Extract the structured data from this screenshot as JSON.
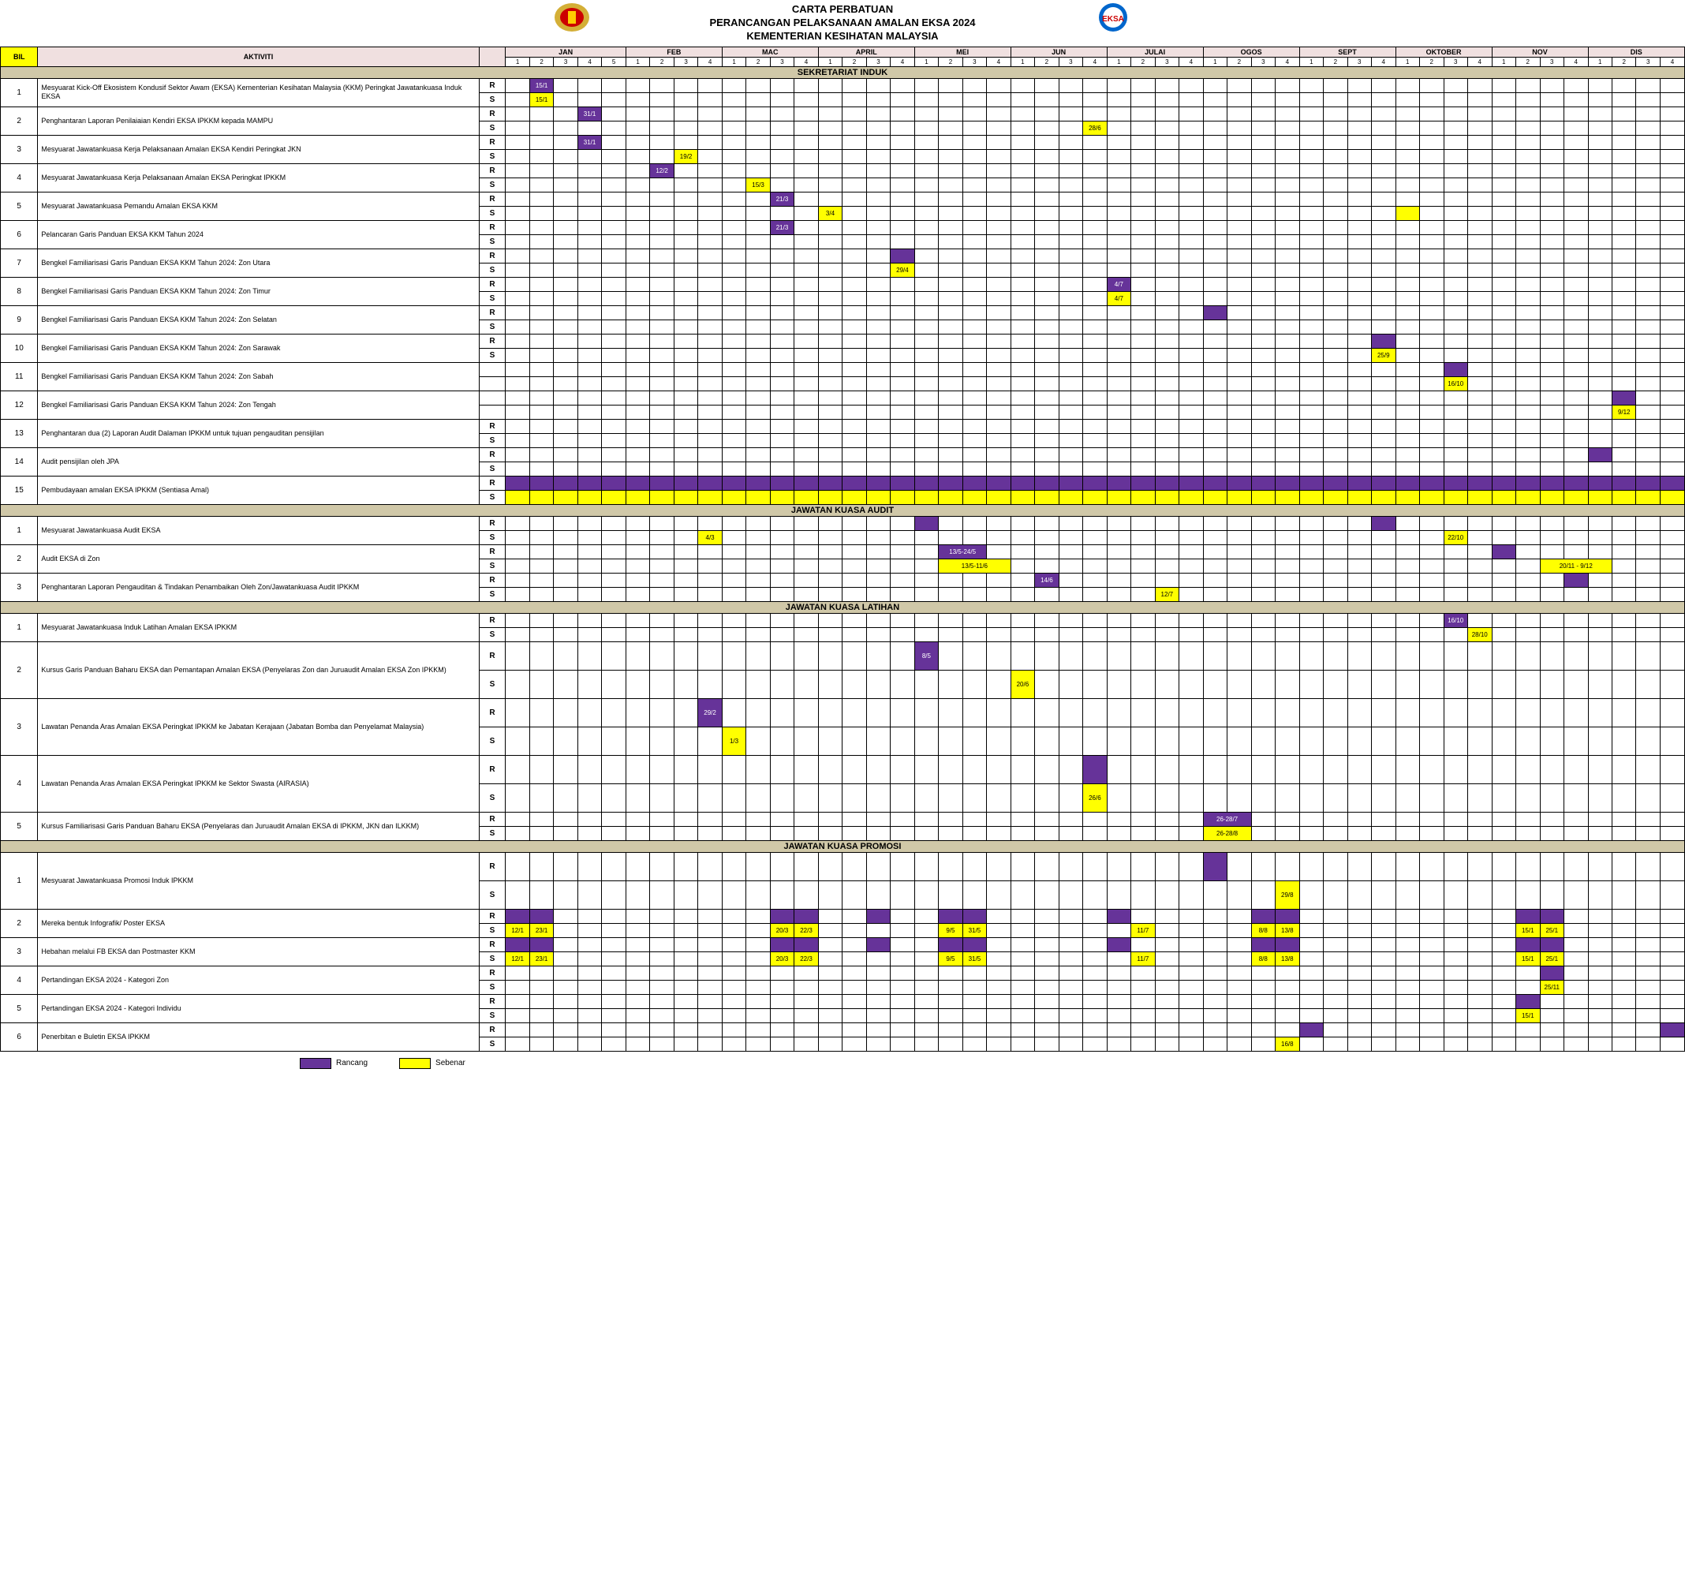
{
  "header": {
    "line1": "CARTA PERBATUAN",
    "line2": "PERANCANGAN PELAKSANAAN AMALAN EKSA 2024",
    "line3": "KEMENTERIAN KESIHATAN MALAYSIA"
  },
  "columns": {
    "bil": "BIL",
    "aktiviti": "AKTIVITI"
  },
  "months": [
    {
      "name": "JAN",
      "weeks": 5
    },
    {
      "name": "FEB",
      "weeks": 4
    },
    {
      "name": "MAC",
      "weeks": 4
    },
    {
      "name": "APRIL",
      "weeks": 4
    },
    {
      "name": "MEI",
      "weeks": 4
    },
    {
      "name": "JUN",
      "weeks": 4
    },
    {
      "name": "JULAI",
      "weeks": 4
    },
    {
      "name": "OGOS",
      "weeks": 4
    },
    {
      "name": "SEPT",
      "weeks": 4
    },
    {
      "name": "OKTOBER",
      "weeks": 4
    },
    {
      "name": "NOV",
      "weeks": 4
    },
    {
      "name": "DIS",
      "weeks": 4
    }
  ],
  "totalWeeks": 49,
  "colors": {
    "purple": "#663399",
    "yellow": "#ffff00",
    "sectionBg": "#d0c8a8",
    "headerBg": "#f0e0e0"
  },
  "legend": {
    "rancang": "Rancang",
    "sebenar": "Sebenar"
  },
  "sections": [
    {
      "title": "SEKRETARIAT INDUK",
      "rows": [
        {
          "bil": 1,
          "akt": "Mesyuarat Kick-Off Ekosistem Kondusif Sektor Awam (EKSA) Kementerian Kesihatan Malaysia (KKM) Peringkat Jawatankuasa Induk EKSA",
          "r": [
            {
              "w": 2,
              "t": "15/1"
            }
          ],
          "s": [
            {
              "w": 2,
              "t": "15/1"
            }
          ]
        },
        {
          "bil": 2,
          "akt": "Penghantaran Laporan Penilaiaian Kendiri EKSA IPKKM kepada MAMPU",
          "r": [
            {
              "w": 4,
              "t": "31/1"
            }
          ],
          "s": [
            {
              "w": 25,
              "t": "28/6"
            }
          ]
        },
        {
          "bil": 3,
          "akt": "Mesyuarat Jawatankuasa Kerja Pelaksanaan Amalan EKSA Kendiri Peringkat JKN",
          "r": [
            {
              "w": 4,
              "t": "31/1"
            }
          ],
          "s": [
            {
              "w": 8,
              "t": "19/2"
            }
          ]
        },
        {
          "bil": 4,
          "akt": "Mesyuarat Jawatankuasa Kerja Pelaksanaan Amalan EKSA Peringkat IPKKM",
          "r": [
            {
              "w": 7,
              "t": "12/2"
            }
          ],
          "s": [
            {
              "w": 11,
              "t": "15/3"
            }
          ]
        },
        {
          "bil": 5,
          "akt": "Mesyuarat Jawatankuasa Pemandu Amalan EKSA KKM",
          "r": [
            {
              "w": 12,
              "t": "21/3"
            }
          ],
          "s": [
            {
              "w": 14,
              "t": "3/4"
            },
            {
              "w": 38,
              "t": ""
            }
          ]
        },
        {
          "bil": 6,
          "akt": "Pelancaran Garis Panduan EKSA KKM Tahun 2024",
          "r": [
            {
              "w": 12,
              "t": "21/3"
            }
          ],
          "s": []
        },
        {
          "bil": 7,
          "akt": "Bengkel Familiarisasi Garis Panduan EKSA KKM Tahun 2024: Zon Utara",
          "r": [
            {
              "w": 17,
              "t": ""
            }
          ],
          "s": [
            {
              "w": 17,
              "t": "29/4"
            }
          ]
        },
        {
          "bil": 8,
          "akt": "Bengkel Familiarisasi Garis Panduan EKSA KKM Tahun 2024: Zon Timur",
          "r": [
            {
              "w": 26,
              "t": "4/7"
            }
          ],
          "s": [
            {
              "w": 26,
              "t": "4/7"
            }
          ]
        },
        {
          "bil": 9,
          "akt": "Bengkel Familiarisasi Garis Panduan EKSA KKM Tahun 2024: Zon Selatan",
          "r": [
            {
              "w": 30,
              "t": ""
            }
          ],
          "s": []
        },
        {
          "bil": 10,
          "akt": "Bengkel Familiarisasi Garis Panduan EKSA KKM Tahun 2024: Zon Sarawak",
          "r": [
            {
              "w": 37,
              "t": ""
            }
          ],
          "s": [
            {
              "w": 37,
              "t": "25/9"
            }
          ]
        },
        {
          "bil": 11,
          "akt": "Bengkel Familiarisasi Garis Panduan EKSA KKM Tahun 2024: Zon Sabah",
          "r": [
            {
              "w": 40,
              "t": ""
            }
          ],
          "s": [
            {
              "w": 40,
              "t": "16/10"
            }
          ],
          "noRS": true
        },
        {
          "bil": 12,
          "akt": "Bengkel Familiarisasi Garis Panduan EKSA KKM Tahun 2024: Zon Tengah",
          "r": [
            {
              "w": 47,
              "t": ""
            }
          ],
          "s": [
            {
              "w": 47,
              "t": "9/12"
            }
          ],
          "noRS": true
        },
        {
          "bil": 13,
          "akt": "Penghantaran dua (2) Laporan Audit Dalaman IPKKM untuk tujuan pengauditan pensijilan",
          "r": [],
          "s": []
        },
        {
          "bil": 14,
          "akt": "Audit pensijilan oleh JPA",
          "r": [
            {
              "w": 46,
              "t": ""
            }
          ],
          "s": []
        },
        {
          "bil": 15,
          "akt": "Pembudayaan amalan EKSA IPKKM (Sentiasa Amal)",
          "r": "full",
          "s": "full"
        }
      ]
    },
    {
      "title": "JAWATAN KUASA  AUDIT",
      "rows": [
        {
          "bil": 1,
          "akt": "Mesyuarat Jawatankuasa Audit EKSA",
          "r": [
            {
              "w": 18,
              "t": ""
            },
            {
              "w": 37,
              "t": ""
            }
          ],
          "s": [
            {
              "w": 9,
              "t": "4/3"
            },
            {
              "w": 40,
              "t": "22/10"
            }
          ]
        },
        {
          "bil": 2,
          "akt": "Audit EKSA di Zon",
          "r": [
            {
              "w": 19,
              "t": "13/5-24/5",
              "span": 2
            },
            {
              "w": 42,
              "t": ""
            }
          ],
          "s": [
            {
              "w": 19,
              "t": "13/5-11/6",
              "span": 3
            },
            {
              "w": 44,
              "t": "20/11 - 9/12",
              "span": 3
            }
          ]
        },
        {
          "bil": 3,
          "akt": "Penghantaran Laporan Pengauditan & Tindakan Penambaikan Oleh Zon/Jawatankuasa  Audit IPKKM",
          "r": [
            {
              "w": 23,
              "t": "14/6"
            },
            {
              "w": 45,
              "t": ""
            }
          ],
          "s": [
            {
              "w": 28,
              "t": "12/7"
            }
          ]
        }
      ]
    },
    {
      "title": "JAWATAN KUASA LATIHAN",
      "rows": [
        {
          "bil": 1,
          "akt": "Mesyuarat Jawatankuasa Induk Latihan Amalan EKSA IPKKM",
          "r": [
            {
              "w": 40,
              "t": "16/10"
            }
          ],
          "s": [
            {
              "w": 41,
              "t": "28/10"
            }
          ]
        },
        {
          "bil": 2,
          "akt": "Kursus Garis Panduan Baharu EKSA dan Pemantapan Amalan EKSA (Penyelaras Zon dan Juruaudit Amalan EKSA Zon IPKKM)",
          "r": [
            {
              "w": 18,
              "t": "8/5"
            }
          ],
          "s": [
            {
              "w": 22,
              "t": "20/6"
            }
          ],
          "tall": true
        },
        {
          "bil": 3,
          "akt": "Lawatan Penanda Aras Amalan EKSA Peringkat IPKKM  ke Jabatan Kerajaan (Jabatan Bomba dan Penyelamat Malaysia)",
          "r": [
            {
              "w": 9,
              "t": "29/2"
            }
          ],
          "s": [
            {
              "w": 10,
              "t": "1/3"
            }
          ],
          "tall": true
        },
        {
          "bil": 4,
          "akt": "Lawatan Penanda Aras Amalan EKSA Peringkat IPKKM ke Sektor Swasta (AIRASIA)",
          "r": [
            {
              "w": 25,
              "t": ""
            }
          ],
          "s": [
            {
              "w": 25,
              "t": "26/6"
            }
          ],
          "tall": true
        },
        {
          "bil": 5,
          "akt": "Kursus Familiarisasi Garis Panduan Baharu EKSA (Penyelaras dan Juruaudit Amalan EKSA di IPKKM, JKN dan ILKKM)",
          "r": [
            {
              "w": 30,
              "t": "26-28/7",
              "span": 2
            }
          ],
          "s": [
            {
              "w": 30,
              "t": "26-28/8",
              "span": 2
            }
          ]
        }
      ]
    },
    {
      "title": "JAWATAN KUASA PROMOSI",
      "rows": [
        {
          "bil": 1,
          "akt": "Mesyuarat Jawatankuasa Promosi Induk IPKKM",
          "r": [
            {
              "w": 30,
              "t": ""
            }
          ],
          "s": [
            {
              "w": 33,
              "t": "29/8"
            }
          ],
          "tall": true
        },
        {
          "bil": 2,
          "akt": "Mereka bentuk Infografik/ Poster EKSA",
          "r": [
            {
              "w": 1
            },
            {
              "w": 2
            },
            {
              "w": 12
            },
            {
              "w": 13
            },
            {
              "w": 16
            },
            {
              "w": 19
            },
            {
              "w": 20
            },
            {
              "w": 26
            },
            {
              "w": 32
            },
            {
              "w": 33
            },
            {
              "w": 43
            },
            {
              "w": 44
            }
          ],
          "s": [
            {
              "w": 1,
              "t": "12/1"
            },
            {
              "w": 2,
              "t": "23/1"
            },
            {
              "w": 12,
              "t": "20/3"
            },
            {
              "w": 13,
              "t": "22/3"
            },
            {
              "w": 19,
              "t": "9/5"
            },
            {
              "w": 20,
              "t": "31/5"
            },
            {
              "w": 27,
              "t": "11/7"
            },
            {
              "w": 32,
              "t": "8/8"
            },
            {
              "w": 33,
              "t": "13/8"
            },
            {
              "w": 43,
              "t": "15/1"
            },
            {
              "w": 44,
              "t": "25/1"
            }
          ]
        },
        {
          "bil": 3,
          "akt": "Hebahan melalui FB EKSA dan Postmaster KKM",
          "r": [
            {
              "w": 1
            },
            {
              "w": 2
            },
            {
              "w": 12
            },
            {
              "w": 13
            },
            {
              "w": 16
            },
            {
              "w": 19
            },
            {
              "w": 20
            },
            {
              "w": 26
            },
            {
              "w": 32
            },
            {
              "w": 33
            },
            {
              "w": 43
            },
            {
              "w": 44
            }
          ],
          "s": [
            {
              "w": 1,
              "t": "12/1"
            },
            {
              "w": 2,
              "t": "23/1"
            },
            {
              "w": 12,
              "t": "20/3"
            },
            {
              "w": 13,
              "t": "22/3"
            },
            {
              "w": 19,
              "t": "9/5"
            },
            {
              "w": 20,
              "t": "31/5"
            },
            {
              "w": 27,
              "t": "11/7"
            },
            {
              "w": 32,
              "t": "8/8"
            },
            {
              "w": 33,
              "t": "13/8"
            },
            {
              "w": 43,
              "t": "15/1"
            },
            {
              "w": 44,
              "t": "25/1"
            }
          ]
        },
        {
          "bil": 4,
          "akt": "Pertandingan EKSA 2024 - Kategori Zon",
          "r": [
            {
              "w": 44
            }
          ],
          "s": [
            {
              "w": 44,
              "t": "25/11"
            }
          ]
        },
        {
          "bil": 5,
          "akt": "Pertandingan EKSA 2024 - Kategori Individu",
          "r": [
            {
              "w": 43
            }
          ],
          "s": [
            {
              "w": 43,
              "t": "15/1"
            }
          ]
        },
        {
          "bil": 6,
          "akt": "Penerbitan e Buletin EKSA IPKKM",
          "r": [
            {
              "w": 34
            },
            {
              "w": 49
            }
          ],
          "s": [
            {
              "w": 33,
              "t": "16/8"
            }
          ]
        }
      ]
    }
  ]
}
